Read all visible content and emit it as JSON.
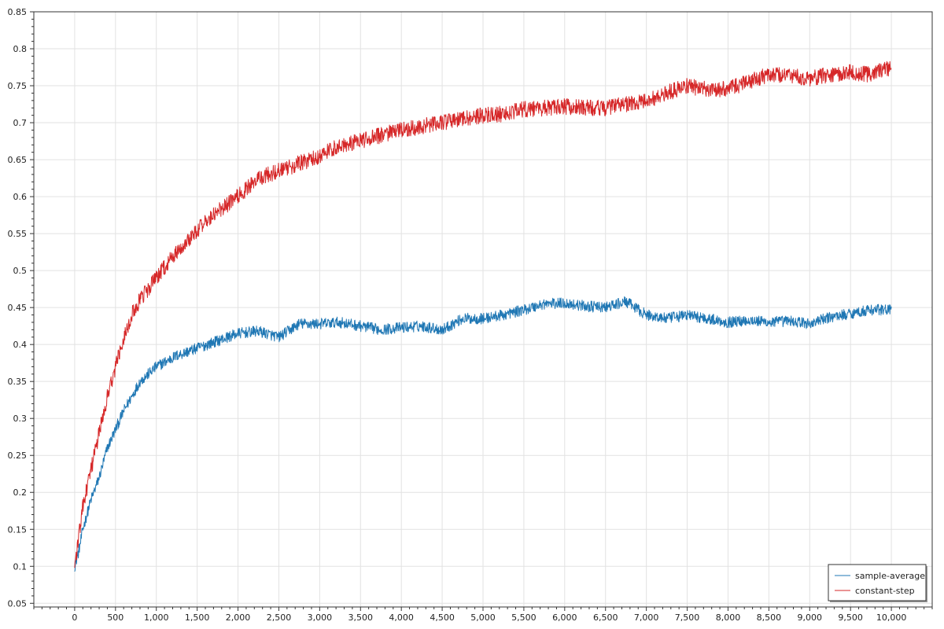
{
  "chart_data": {
    "type": "line",
    "title": "",
    "xlabel": "",
    "ylabel": "",
    "xlim": [
      -500,
      10500
    ],
    "ylim": [
      0.045,
      0.85
    ],
    "x_ticks": [
      0,
      500,
      1000,
      1500,
      2000,
      2500,
      3000,
      3500,
      4000,
      4500,
      5000,
      5500,
      6000,
      6500,
      7000,
      7500,
      8000,
      8500,
      9000,
      9500,
      10000
    ],
    "x_tick_labels": [
      "0",
      "500",
      "1,000",
      "1,500",
      "2,000",
      "2,500",
      "3,000",
      "3,500",
      "4,000",
      "4,500",
      "5,000",
      "5,500",
      "6,000",
      "6,500",
      "7,000",
      "7,500",
      "8,000",
      "8,500",
      "9,000",
      "9,500",
      "10,000"
    ],
    "y_ticks": [
      0.05,
      0.1,
      0.15,
      0.2,
      0.25,
      0.3,
      0.35,
      0.4,
      0.45,
      0.5,
      0.55,
      0.6,
      0.65,
      0.7,
      0.75,
      0.8,
      0.85
    ],
    "y_tick_labels": [
      "0.05",
      "0.1",
      "0.15",
      "0.2",
      "0.25",
      "0.3",
      "0.35",
      "0.4",
      "0.45",
      "0.5",
      "0.55",
      "0.6",
      "0.65",
      "0.7",
      "0.75",
      "0.8",
      "0.85"
    ],
    "grid": true,
    "legend_position": "bottom-right",
    "x": [
      0,
      50,
      100,
      200,
      300,
      400,
      500,
      600,
      700,
      800,
      1000,
      1250,
      1500,
      1750,
      2000,
      2250,
      2500,
      2750,
      3000,
      3250,
      3500,
      3750,
      4000,
      4250,
      4500,
      4750,
      5000,
      5250,
      5500,
      5750,
      6000,
      6250,
      6500,
      6750,
      7000,
      7250,
      7500,
      7750,
      8000,
      8250,
      8500,
      8750,
      9000,
      9250,
      9500,
      9750,
      10000
    ],
    "series": [
      {
        "name": "sample-average",
        "color": "#1f77b4",
        "values": [
          0.1,
          0.12,
          0.15,
          0.19,
          0.22,
          0.26,
          0.285,
          0.31,
          0.33,
          0.35,
          0.37,
          0.385,
          0.395,
          0.405,
          0.415,
          0.418,
          0.41,
          0.428,
          0.428,
          0.43,
          0.425,
          0.42,
          0.423,
          0.425,
          0.42,
          0.435,
          0.435,
          0.44,
          0.447,
          0.455,
          0.456,
          0.452,
          0.45,
          0.458,
          0.44,
          0.435,
          0.44,
          0.435,
          0.43,
          0.433,
          0.43,
          0.432,
          0.428,
          0.437,
          0.442,
          0.447,
          0.447
        ]
      },
      {
        "name": "constant-step",
        "color": "#d62728",
        "values": [
          0.1,
          0.14,
          0.18,
          0.23,
          0.28,
          0.33,
          0.37,
          0.41,
          0.44,
          0.46,
          0.49,
          0.525,
          0.555,
          0.58,
          0.6,
          0.625,
          0.635,
          0.645,
          0.655,
          0.67,
          0.675,
          0.683,
          0.69,
          0.695,
          0.7,
          0.705,
          0.71,
          0.712,
          0.718,
          0.72,
          0.722,
          0.72,
          0.72,
          0.725,
          0.728,
          0.74,
          0.75,
          0.745,
          0.745,
          0.755,
          0.765,
          0.765,
          0.76,
          0.765,
          0.768,
          0.765,
          0.775
        ]
      }
    ]
  }
}
